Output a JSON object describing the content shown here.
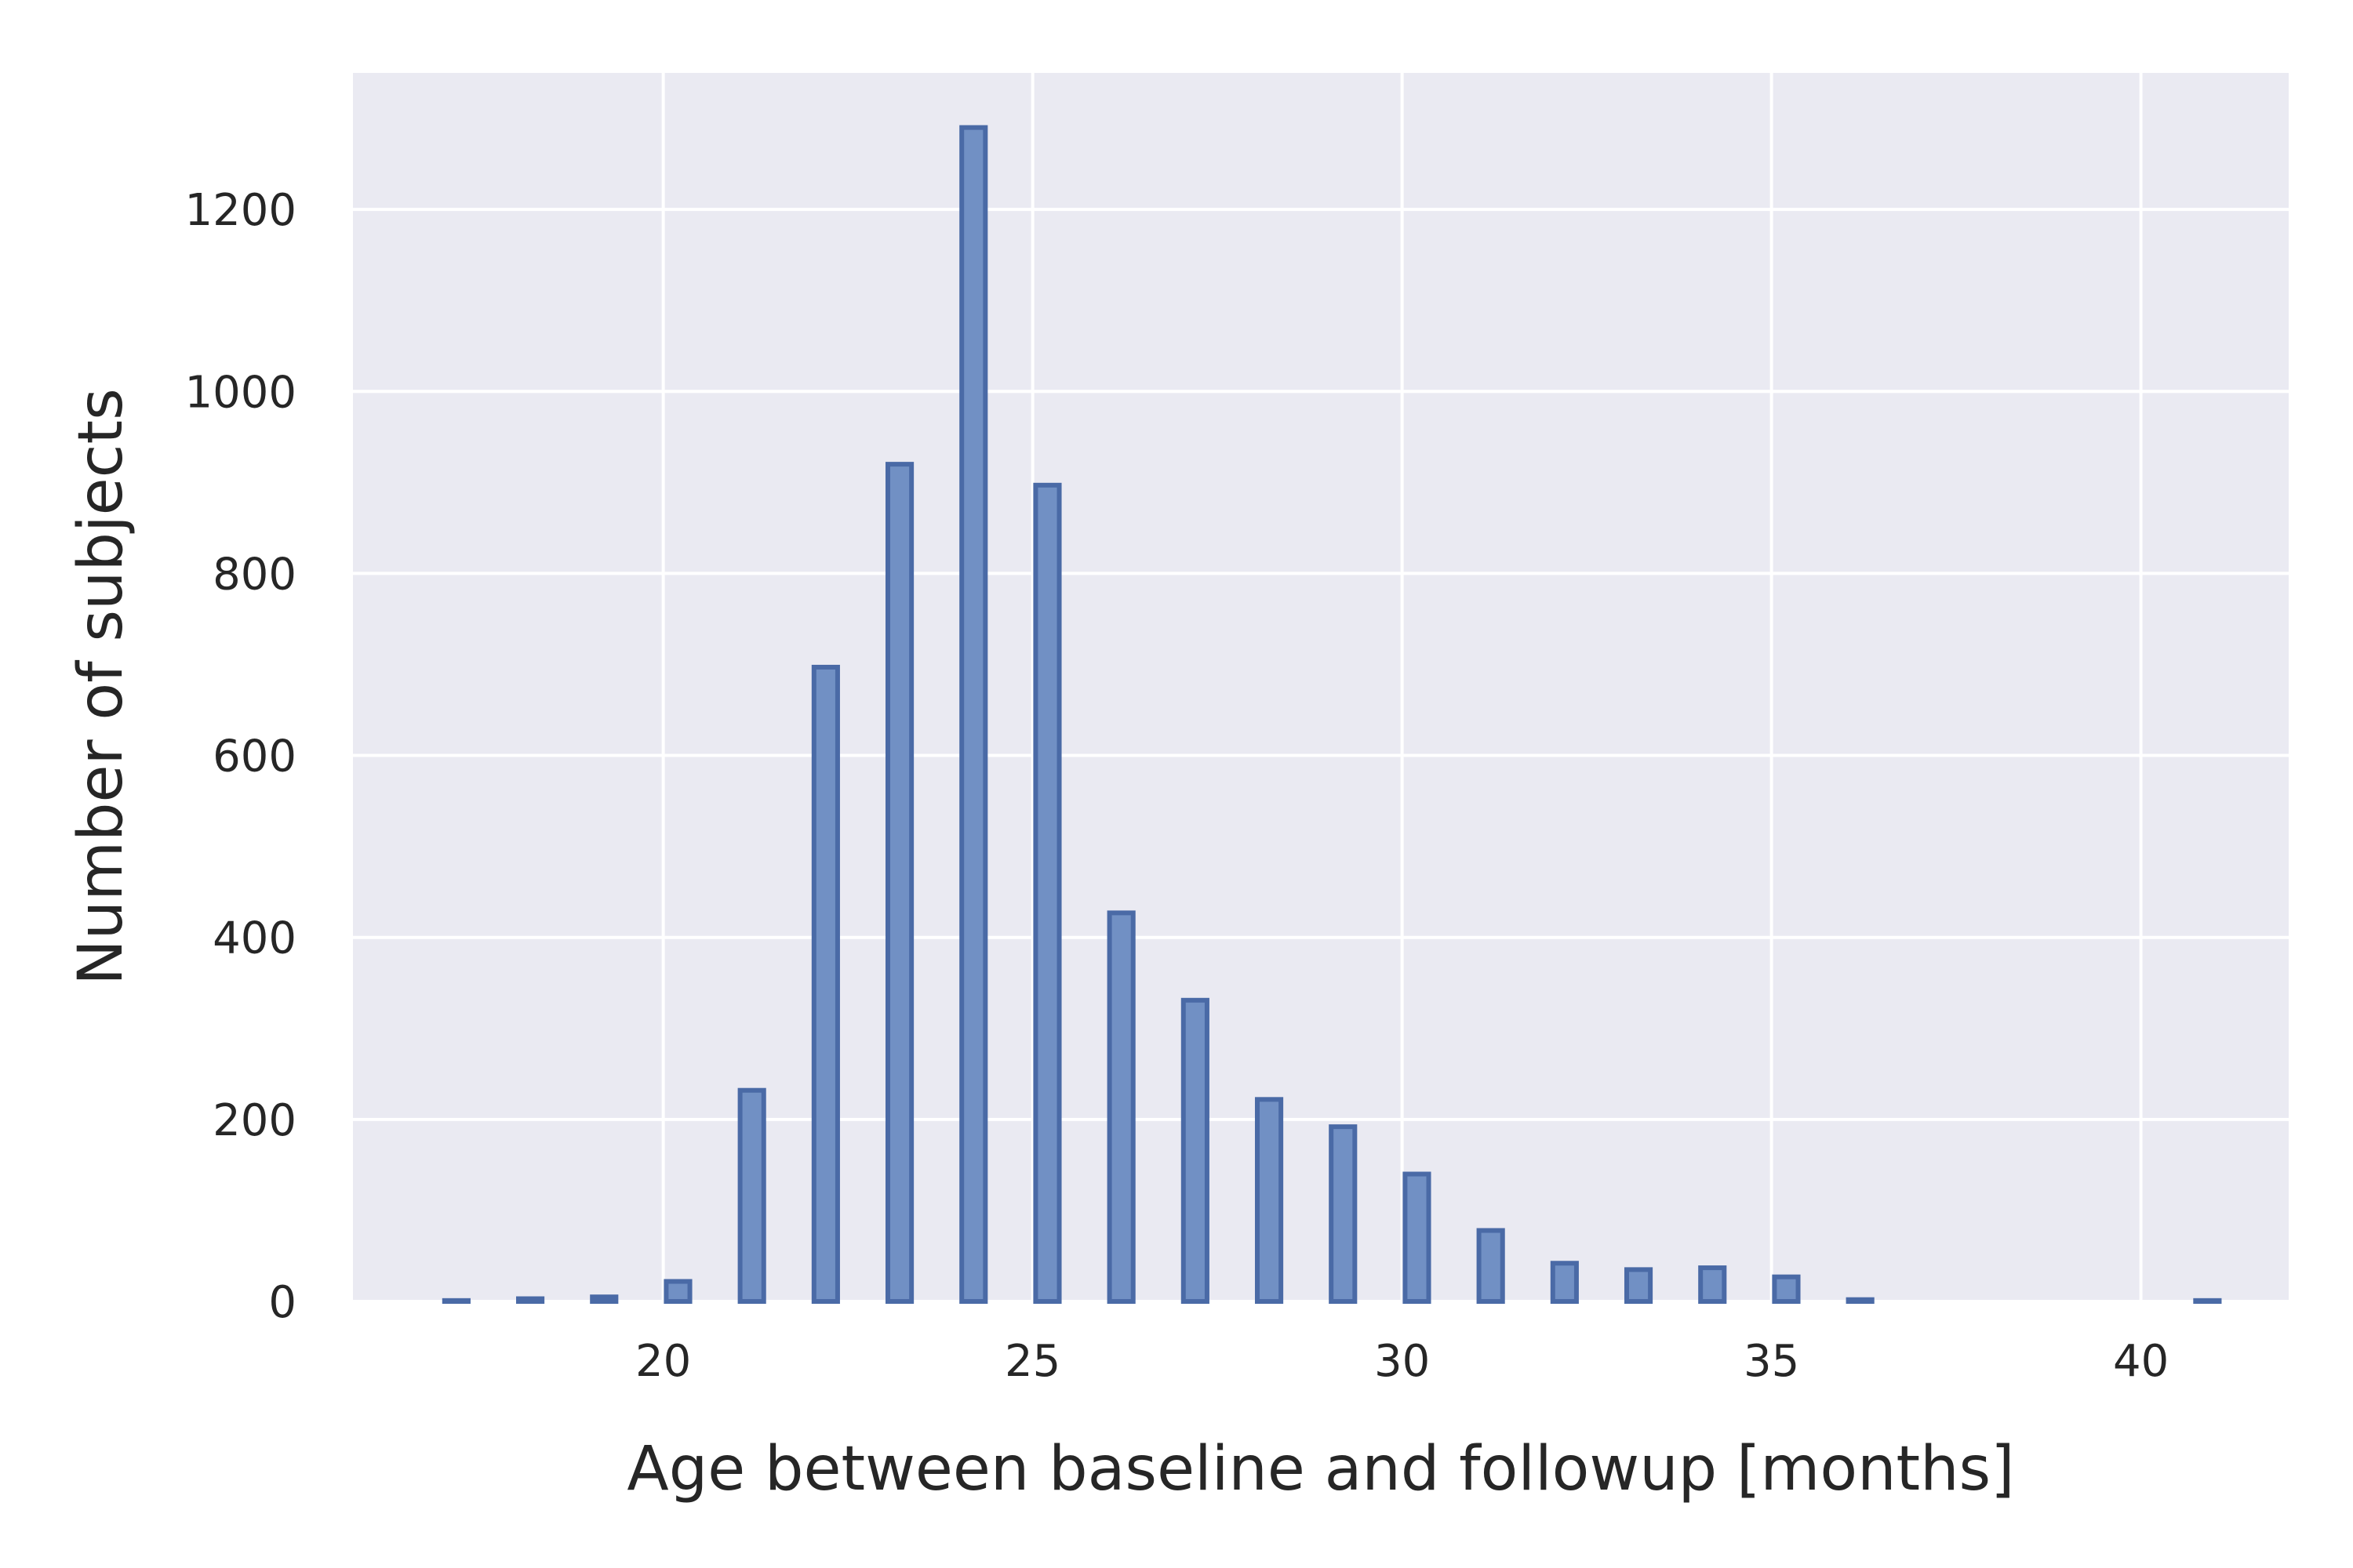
{
  "chart_data": {
    "type": "bar",
    "xlabel": "Age between baseline and followup [months]",
    "ylabel": "Number of subjects",
    "xlim": [
      15.8,
      42.0
    ],
    "ylim": [
      0,
      1350
    ],
    "xticks": [
      20,
      25,
      30,
      35,
      40
    ],
    "yticks": [
      0,
      200,
      400,
      600,
      800,
      1000,
      1200
    ],
    "bar_width": 0.32,
    "grid": true,
    "bars": [
      {
        "x": 17.2,
        "value": 1
      },
      {
        "x": 18.2,
        "value": 3
      },
      {
        "x": 19.2,
        "value": 5
      },
      {
        "x": 20.2,
        "value": 22
      },
      {
        "x": 21.2,
        "value": 232
      },
      {
        "x": 22.2,
        "value": 697
      },
      {
        "x": 23.2,
        "value": 920
      },
      {
        "x": 24.2,
        "value": 1290
      },
      {
        "x": 25.2,
        "value": 897
      },
      {
        "x": 26.2,
        "value": 427
      },
      {
        "x": 27.2,
        "value": 331
      },
      {
        "x": 28.2,
        "value": 222
      },
      {
        "x": 29.2,
        "value": 192
      },
      {
        "x": 30.2,
        "value": 140
      },
      {
        "x": 31.2,
        "value": 78
      },
      {
        "x": 32.2,
        "value": 42
      },
      {
        "x": 33.2,
        "value": 35
      },
      {
        "x": 34.2,
        "value": 37
      },
      {
        "x": 35.2,
        "value": 27
      },
      {
        "x": 36.2,
        "value": 2
      },
      {
        "x": 40.9,
        "value": 1
      }
    ]
  }
}
